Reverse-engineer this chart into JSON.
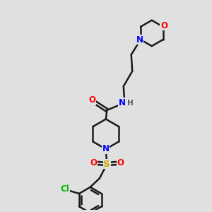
{
  "background_color": "#e0e0e0",
  "line_color": "#1a1a1a",
  "bond_width": 1.8,
  "figsize": [
    3.0,
    3.0
  ],
  "dpi": 100,
  "atom_colors": {
    "N": "#0000ff",
    "O": "#ff0000",
    "S": "#ccaa00",
    "Cl": "#00bb00",
    "H": "#555555"
  },
  "font_size": 8.5,
  "font_size_small": 7.5,
  "xlim": [
    0,
    10
  ],
  "ylim": [
    0,
    10
  ]
}
